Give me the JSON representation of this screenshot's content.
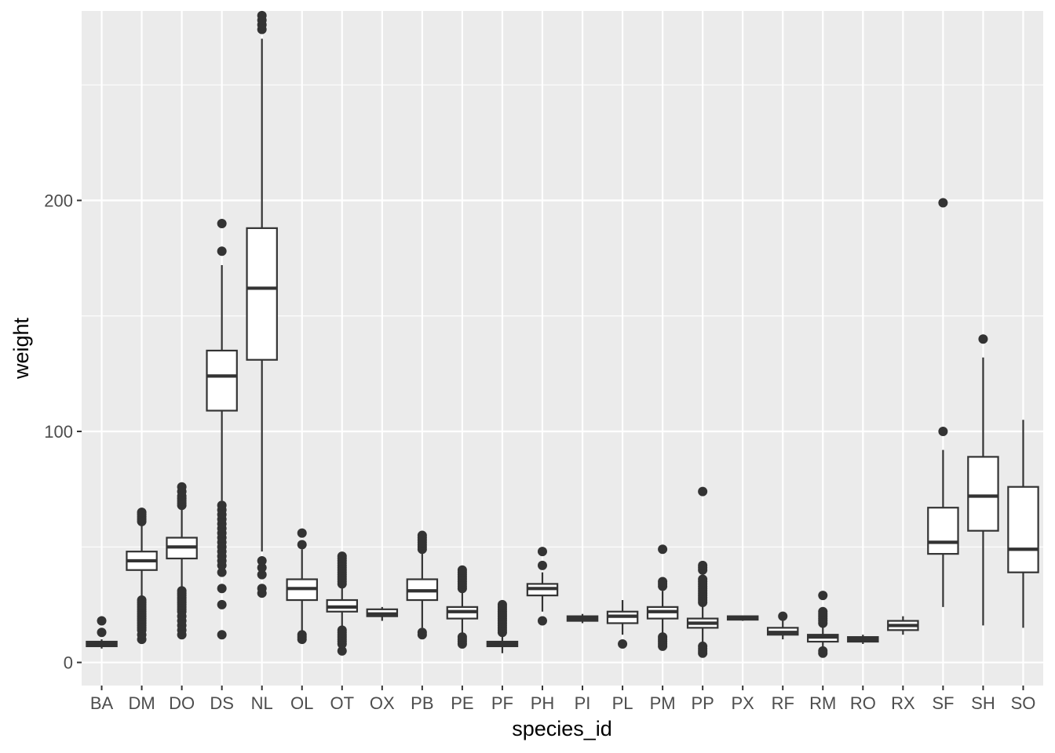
{
  "chart_data": {
    "type": "boxplot",
    "xlabel": "species_id",
    "ylabel": "weight",
    "ylim": [
      -10,
      282
    ],
    "yticks": [
      0,
      100,
      200
    ],
    "grid": true,
    "colors": {
      "panel": "#ebebeb",
      "grid": "#ffffff",
      "box_fill": "#ffffff",
      "box_line": "#333333",
      "tick_text": "#4d4d4d"
    },
    "categories": [
      "BA",
      "DM",
      "DO",
      "DS",
      "NL",
      "OL",
      "OT",
      "OX",
      "PB",
      "PE",
      "PF",
      "PH",
      "PI",
      "PL",
      "PM",
      "PP",
      "PX",
      "RF",
      "RM",
      "RO",
      "RX",
      "SF",
      "SH",
      "SO"
    ],
    "boxes": [
      {
        "species": "BA",
        "q1": 7,
        "median": 8,
        "q3": 9,
        "whisker_low": 6,
        "whisker_high": 10,
        "outliers": [
          13,
          18
        ]
      },
      {
        "species": "DM",
        "q1": 40,
        "median": 44,
        "q3": 48,
        "whisker_low": 28,
        "whisker_high": 60,
        "outliers": [
          10,
          12,
          14,
          15,
          16,
          17,
          18,
          19,
          20,
          21,
          22,
          23,
          24,
          25,
          26,
          27,
          61,
          62,
          63,
          64,
          65
        ]
      },
      {
        "species": "DO",
        "q1": 45,
        "median": 50,
        "q3": 54,
        "whisker_low": 32,
        "whisker_high": 67,
        "outliers": [
          12,
          14,
          16,
          18,
          20,
          22,
          23,
          24,
          25,
          26,
          27,
          28,
          29,
          30,
          31,
          68,
          69,
          70,
          71,
          72,
          74,
          76
        ]
      },
      {
        "species": "DS",
        "q1": 109,
        "median": 124,
        "q3": 135,
        "whisker_low": 70,
        "whisker_high": 172,
        "outliers": [
          12,
          25,
          32,
          39,
          42,
          44,
          46,
          48,
          50,
          52,
          54,
          56,
          58,
          60,
          62,
          64,
          66,
          68,
          178,
          190
        ]
      },
      {
        "species": "NL",
        "q1": 131,
        "median": 162,
        "q3": 188,
        "whisker_low": 48,
        "whisker_high": 270,
        "outliers": [
          30,
          32,
          38,
          41,
          44,
          274,
          276,
          278,
          280
        ]
      },
      {
        "species": "OL",
        "q1": 27,
        "median": 32,
        "q3": 36,
        "whisker_low": 13,
        "whisker_high": 49,
        "outliers": [
          10,
          11,
          12,
          51,
          56
        ]
      },
      {
        "species": "OT",
        "q1": 22,
        "median": 24,
        "q3": 27,
        "whisker_low": 15,
        "whisker_high": 33,
        "outliers": [
          5,
          8,
          9,
          10,
          11,
          12,
          13,
          14,
          34,
          35,
          36,
          37,
          38,
          39,
          40,
          41,
          42,
          43,
          44,
          45,
          46
        ]
      },
      {
        "species": "OX",
        "q1": 20,
        "median": 21,
        "q3": 23,
        "whisker_low": 18,
        "whisker_high": 24,
        "outliers": []
      },
      {
        "species": "PB",
        "q1": 27,
        "median": 31,
        "q3": 36,
        "whisker_low": 15,
        "whisker_high": 48,
        "outliers": [
          12,
          13,
          49,
          50,
          51,
          52,
          53,
          54,
          55
        ]
      },
      {
        "species": "PE",
        "q1": 19,
        "median": 22,
        "q3": 24,
        "whisker_low": 12,
        "whisker_high": 31,
        "outliers": [
          8,
          9,
          10,
          11,
          32,
          33,
          34,
          35,
          36,
          37,
          38,
          39,
          40
        ]
      },
      {
        "species": "PF",
        "q1": 7,
        "median": 8,
        "q3": 9,
        "whisker_low": 4,
        "whisker_high": 12,
        "outliers": [
          13,
          14,
          15,
          16,
          17,
          18,
          19,
          20,
          21,
          22,
          23,
          24,
          25
        ]
      },
      {
        "species": "PH",
        "q1": 29,
        "median": 32,
        "q3": 34,
        "whisker_low": 22,
        "whisker_high": 39,
        "outliers": [
          18,
          42,
          48
        ]
      },
      {
        "species": "PI",
        "q1": 18,
        "median": 19,
        "q3": 20,
        "whisker_low": 17,
        "whisker_high": 21,
        "outliers": []
      },
      {
        "species": "PL",
        "q1": 17,
        "median": 20,
        "q3": 22,
        "whisker_low": 12,
        "whisker_high": 27,
        "outliers": [
          8
        ]
      },
      {
        "species": "PM",
        "q1": 19,
        "median": 22,
        "q3": 24,
        "whisker_low": 12,
        "whisker_high": 31,
        "outliers": [
          7,
          8,
          9,
          10,
          11,
          33,
          34,
          35,
          49
        ]
      },
      {
        "species": "PP",
        "q1": 15,
        "median": 17,
        "q3": 19,
        "whisker_low": 9,
        "whisker_high": 25,
        "outliers": [
          4,
          5,
          6,
          7,
          26,
          27,
          28,
          29,
          30,
          31,
          32,
          33,
          34,
          35,
          36,
          40,
          41,
          42,
          74
        ]
      },
      {
        "species": "PX",
        "q1": 18.5,
        "median": 19,
        "q3": 20,
        "whisker_low": 18,
        "whisker_high": 20,
        "outliers": []
      },
      {
        "species": "RF",
        "q1": 12,
        "median": 13,
        "q3": 15,
        "whisker_low": 10,
        "whisker_high": 18,
        "outliers": [
          20
        ]
      },
      {
        "species": "RM",
        "q1": 9,
        "median": 11,
        "q3": 12,
        "whisker_low": 6,
        "whisker_high": 16,
        "outliers": [
          4,
          5,
          17,
          18,
          19,
          20,
          21,
          22,
          29
        ]
      },
      {
        "species": "RO",
        "q1": 9,
        "median": 10,
        "q3": 11,
        "whisker_low": 8,
        "whisker_high": 12,
        "outliers": []
      },
      {
        "species": "RX",
        "q1": 14,
        "median": 16,
        "q3": 18,
        "whisker_low": 12,
        "whisker_high": 20,
        "outliers": []
      },
      {
        "species": "SF",
        "q1": 47,
        "median": 52,
        "q3": 67,
        "whisker_low": 24,
        "whisker_high": 92,
        "outliers": [
          100,
          199
        ]
      },
      {
        "species": "SH",
        "q1": 57,
        "median": 72,
        "q3": 89,
        "whisker_low": 16,
        "whisker_high": 132,
        "outliers": [
          140
        ]
      },
      {
        "species": "SO",
        "q1": 39,
        "median": 49,
        "q3": 76,
        "whisker_low": 15,
        "whisker_high": 105,
        "outliers": []
      }
    ]
  }
}
